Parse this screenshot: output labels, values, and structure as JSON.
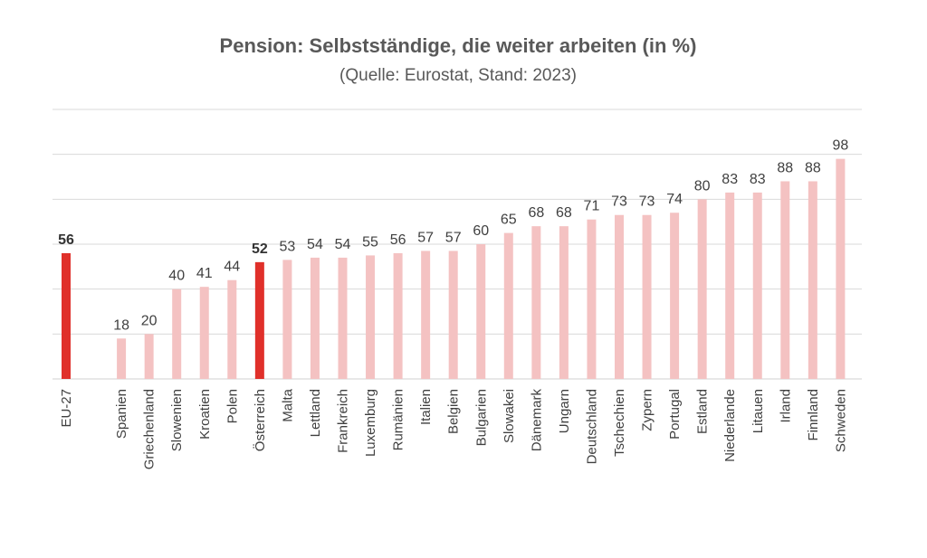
{
  "chart_data": {
    "type": "bar",
    "title": "Pension: Selbstständige, die weiter arbeiten (in %)",
    "subtitle": "(Quelle: Eurostat, Stand: 2023)",
    "xlabel": "",
    "ylabel": "",
    "ylim": [
      0,
      120
    ],
    "grid": true,
    "categories": [
      "EU-27",
      "",
      "Spanien",
      "Griechenland",
      "Slowenien",
      "Kroatien",
      "Polen",
      "Österreich",
      "Malta",
      "Lettland",
      "Frankreich",
      "Luxemburg",
      "Rumänien",
      "Italien",
      "Belgien",
      "Bulgarien",
      "Slowakei",
      "Dänemark",
      "Ungarn",
      "Deutschland",
      "Tschechien",
      "Zypern",
      "Portugal",
      "Estland",
      "Niederlande",
      "Litauen",
      "Irland",
      "Finnland",
      "Schweden"
    ],
    "values": [
      56,
      null,
      18,
      20,
      40,
      41,
      44,
      52,
      53,
      54,
      54,
      55,
      56,
      57,
      57,
      60,
      65,
      68,
      68,
      71,
      73,
      73,
      74,
      80,
      83,
      83,
      88,
      88,
      98
    ],
    "highlight": [
      "EU-27",
      "Österreich"
    ],
    "colors": {
      "default": "#f4c2c2",
      "highlight": "#e0302a",
      "grid": "#d9d9d9"
    }
  }
}
